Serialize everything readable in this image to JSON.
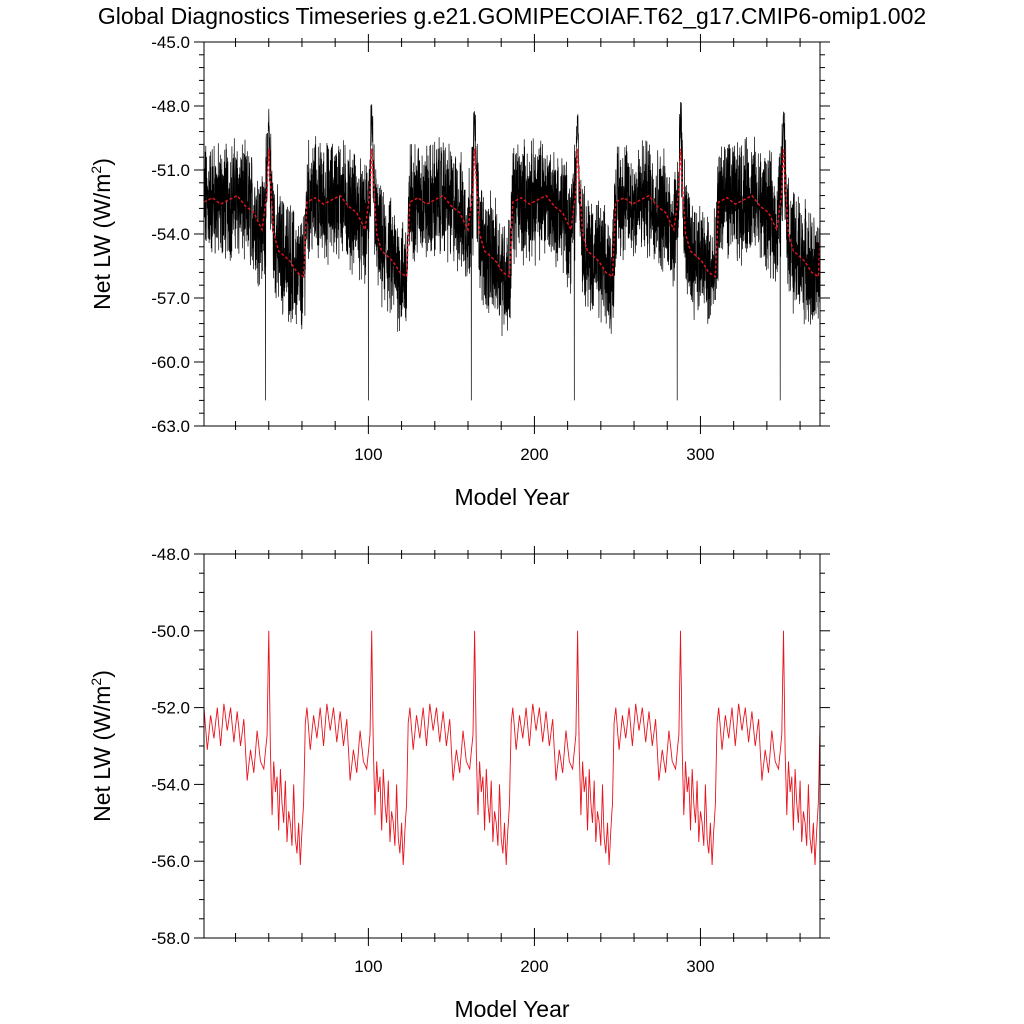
{
  "title": "Global Diagnostics Timeseries g.e21.GOMIPECOIAF.T62_g17.CMIP6-omip1.002",
  "colors": {
    "raw": "#000000",
    "smooth": "#e8141e",
    "axis": "#000000"
  },
  "chart_data": [
    {
      "type": "line",
      "name": "top-panel",
      "xlabel": "Model Year",
      "ylabel_main": "Net LW (W/m",
      "ylabel_sup": "2",
      "ylabel_end": ")",
      "xlim": [
        1,
        372
      ],
      "ylim": [
        -63.0,
        -45.0
      ],
      "xticks": [
        100,
        200,
        300
      ],
      "xtick_labels": [
        "100",
        "200",
        "300"
      ],
      "yticks": [
        -63.0,
        -60.0,
        -57.0,
        -54.0,
        -51.0,
        -48.0,
        -45.0
      ],
      "ytick_labels": [
        "-63.0",
        "-60.0",
        "-57.0",
        "-54.0",
        "-51.0",
        "-48.0",
        "-45.0"
      ],
      "cycle_years": 62,
      "cycle_start": 1,
      "series": [
        {
          "role": "monthly",
          "color": "#000000",
          "cycle_anchor_x": [
            0,
            5,
            10,
            15,
            20,
            25,
            30,
            35,
            38,
            39,
            40,
            42,
            45,
            48,
            52,
            56,
            60,
            62
          ],
          "cycle_anchor_y": [
            -52.5,
            -52.3,
            -52.6,
            -52.4,
            -52.2,
            -52.7,
            -53.0,
            -53.8,
            -52.0,
            -48.2,
            -51.5,
            -54.0,
            -54.8,
            -55.0,
            -55.3,
            -55.8,
            -56.0,
            -52.5
          ],
          "spread": 3.2,
          "spikes": [
            {
              "offset": 37,
              "value": -61.8
            }
          ]
        },
        {
          "role": "annual-mean",
          "color": "#e8141e",
          "cycle_anchor_x": [
            0,
            5,
            10,
            15,
            20,
            25,
            30,
            35,
            38,
            39,
            40,
            42,
            45,
            48,
            52,
            56,
            60,
            62
          ],
          "cycle_anchor_y": [
            -52.5,
            -52.3,
            -52.6,
            -52.4,
            -52.2,
            -52.7,
            -53.0,
            -53.8,
            -52.0,
            -50.0,
            -51.5,
            -54.0,
            -54.8,
            -55.0,
            -55.3,
            -55.8,
            -56.0,
            -52.5
          ]
        }
      ]
    },
    {
      "type": "line",
      "name": "bottom-panel",
      "xlabel": "Model Year",
      "ylabel_main": "Net LW (W/m",
      "ylabel_sup": "2",
      "ylabel_end": ")",
      "xlim": [
        1,
        372
      ],
      "ylim": [
        -58.0,
        -48.0
      ],
      "xticks": [
        100,
        200,
        300
      ],
      "xtick_labels": [
        "100",
        "200",
        "300"
      ],
      "yticks": [
        -58.0,
        -56.0,
        -54.0,
        -52.0,
        -50.0,
        -48.0
      ],
      "ytick_labels": [
        "-58.0",
        "-56.0",
        "-54.0",
        "-52.0",
        "-50.0",
        "-48.0"
      ],
      "cycle_years": 62,
      "cycle_start": 1,
      "series": [
        {
          "role": "annual-mean",
          "color": "#e8141e",
          "cycle_anchor_x": [
            0,
            2,
            4,
            6,
            8,
            10,
            12,
            14,
            16,
            18,
            20,
            22,
            24,
            26,
            28,
            30,
            32,
            34,
            36,
            38,
            39,
            40,
            41,
            42,
            43,
            44,
            45,
            46,
            47,
            48,
            49,
            50,
            51,
            52,
            53,
            54,
            55,
            56,
            57,
            58,
            59,
            60,
            61,
            62
          ],
          "cycle_anchor_y": [
            -52.0,
            -53.1,
            -52.2,
            -52.8,
            -52.0,
            -53.0,
            -51.9,
            -52.6,
            -52.0,
            -52.9,
            -52.1,
            -53.0,
            -52.3,
            -53.9,
            -53.1,
            -53.7,
            -52.6,
            -53.4,
            -53.6,
            -52.7,
            -50.0,
            -53.1,
            -54.8,
            -53.4,
            -54.2,
            -53.8,
            -55.2,
            -53.6,
            -54.5,
            -55.0,
            -53.9,
            -55.5,
            -54.7,
            -55.0,
            -55.6,
            -54.0,
            -55.4,
            -55.8,
            -55.0,
            -56.1,
            -55.2,
            -54.5,
            -52.4,
            -52.0
          ]
        }
      ]
    }
  ]
}
